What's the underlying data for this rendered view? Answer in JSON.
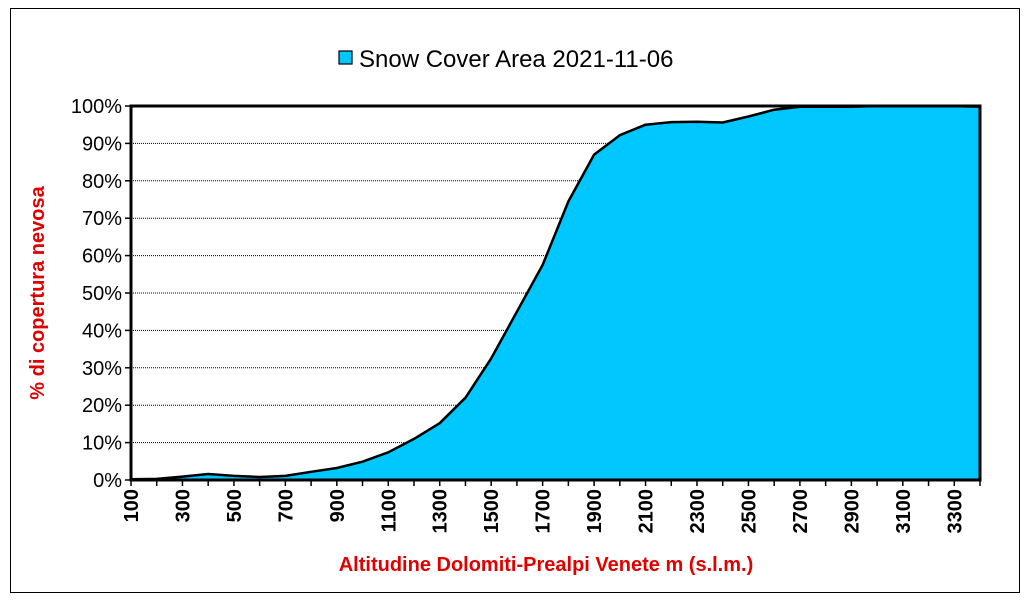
{
  "colors": {
    "area_fill": "#00c8ff",
    "area_stroke": "#000000",
    "axis_title": "#e00000"
  },
  "chart_data": {
    "type": "area",
    "legend": {
      "position": "top-center",
      "label": "Snow Cover Area 2021-11-06"
    },
    "xlabel": "Altitudine Dolomiti-Prealpi Venete m (s.l.m.)",
    "ylabel": "% di copertura nevosa",
    "xlim": [
      100,
      3400
    ],
    "ylim": [
      0,
      100
    ],
    "yticks": [
      0,
      10,
      20,
      30,
      40,
      50,
      60,
      70,
      80,
      90,
      100
    ],
    "ytick_labels": [
      "0%",
      "10%",
      "20%",
      "30%",
      "40%",
      "50%",
      "60%",
      "70%",
      "80%",
      "90%",
      "100%"
    ],
    "xtick_labels": [
      "100",
      "300",
      "500",
      "700",
      "900",
      "1100",
      "1300",
      "1500",
      "1700",
      "1900",
      "2100",
      "2300",
      "2500",
      "2700",
      "2900",
      "3100",
      "3300"
    ],
    "grid": true,
    "x": [
      100,
      200,
      300,
      400,
      500,
      600,
      700,
      800,
      900,
      1000,
      1100,
      1200,
      1300,
      1400,
      1500,
      1600,
      1700,
      1800,
      1900,
      2000,
      2100,
      2200,
      2300,
      2400,
      2500,
      2600,
      2700,
      2800,
      2900,
      3000,
      3100,
      3200,
      3300,
      3400
    ],
    "series": [
      {
        "values": [
          0.2,
          0.3,
          0.9,
          1.6,
          1.1,
          0.8,
          1.1,
          2.2,
          3.2,
          4.9,
          7.4,
          11,
          15.2,
          22,
          32.5,
          45,
          57.5,
          74.5,
          87,
          92.2,
          95,
          95.7,
          95.8,
          95.6,
          97.2,
          99,
          99.8,
          99.8,
          99.8,
          100,
          100,
          100,
          100,
          99.8
        ]
      }
    ]
  }
}
